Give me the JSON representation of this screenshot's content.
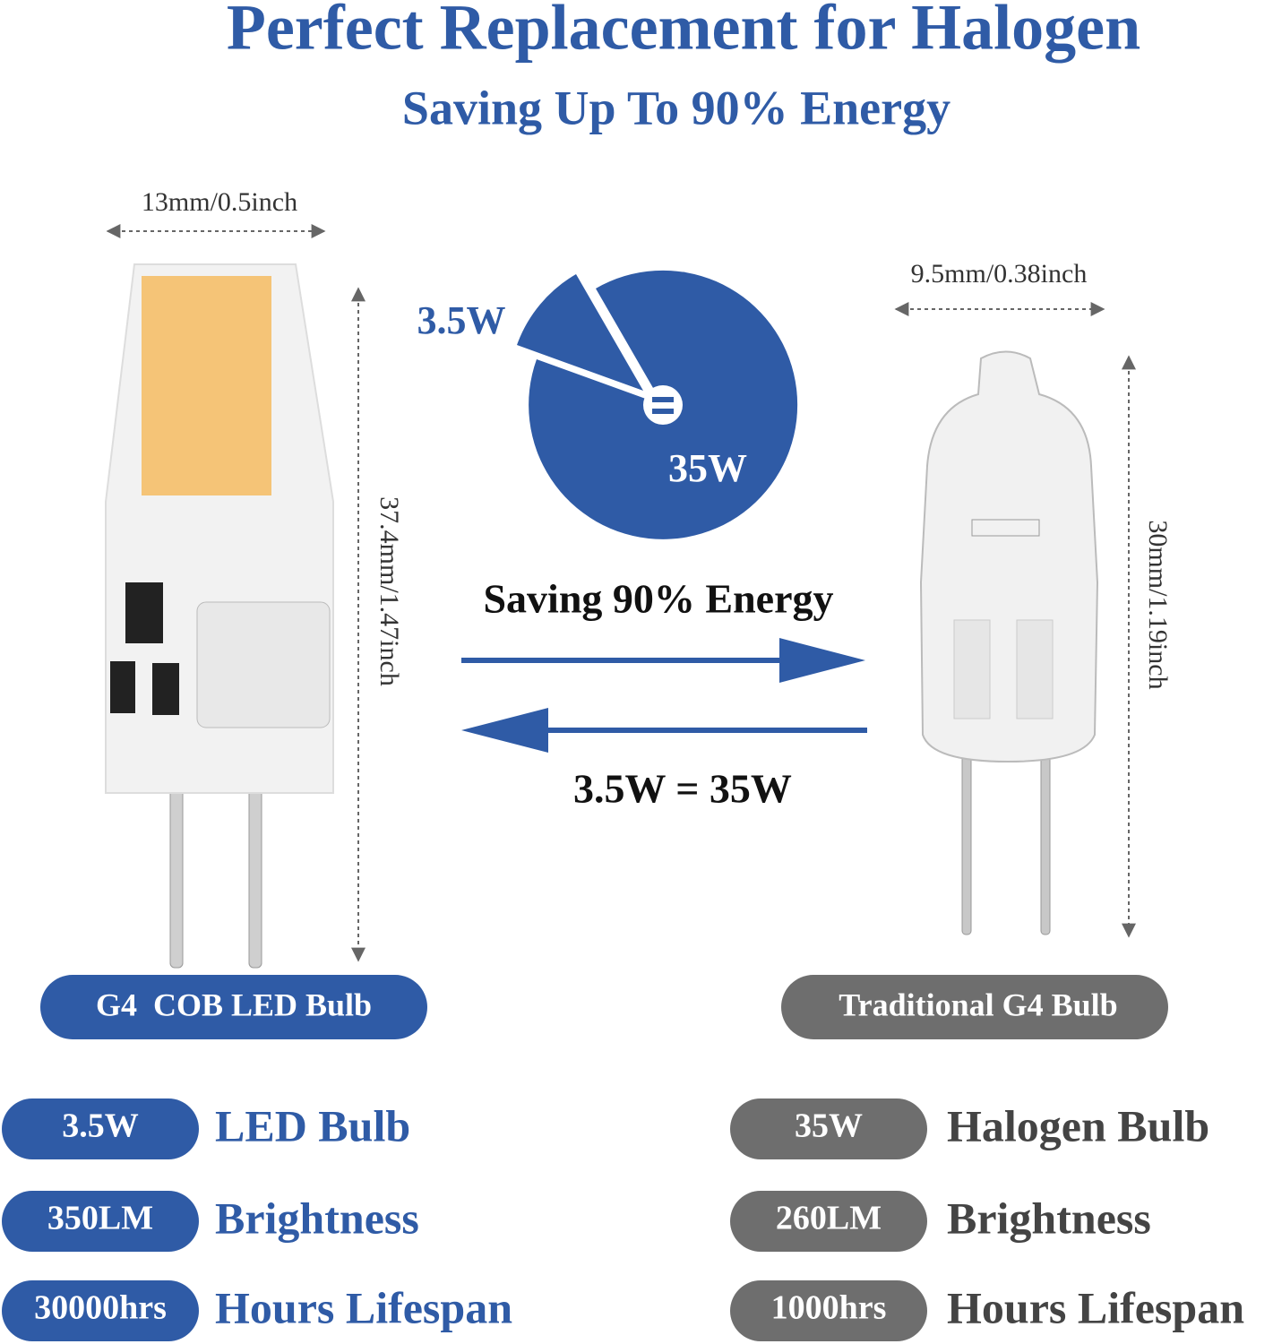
{
  "header": {
    "title": "Perfect Replacement for Halogen",
    "subtitle": "Saving Up To 90% Energy"
  },
  "led": {
    "width": "13mm/0.5inch",
    "height": "37.4mm/1.47inch",
    "badge": "G4  COB LED Bulb"
  },
  "halogen": {
    "width": "9.5mm/0.38inch",
    "height": "30mm/1.19inch",
    "badge": "Traditional G4 Bulb"
  },
  "comparison": {
    "pie_small": "3.5W",
    "pie_large": "35W",
    "caption": "Saving 90% Energy",
    "equation": "3.5W = 35W"
  },
  "specs": {
    "led": [
      {
        "value": "3.5W",
        "label": "LED Bulb"
      },
      {
        "value": "350LM",
        "label": "Brightness"
      },
      {
        "value": "30000hrs",
        "label": "Hours Lifespan"
      }
    ],
    "halogen": [
      {
        "value": "35W",
        "label": "Halogen Bulb"
      },
      {
        "value": "260LM",
        "label": "Brightness"
      },
      {
        "value": "1000hrs",
        "label": "Hours Lifespan"
      }
    ]
  }
}
